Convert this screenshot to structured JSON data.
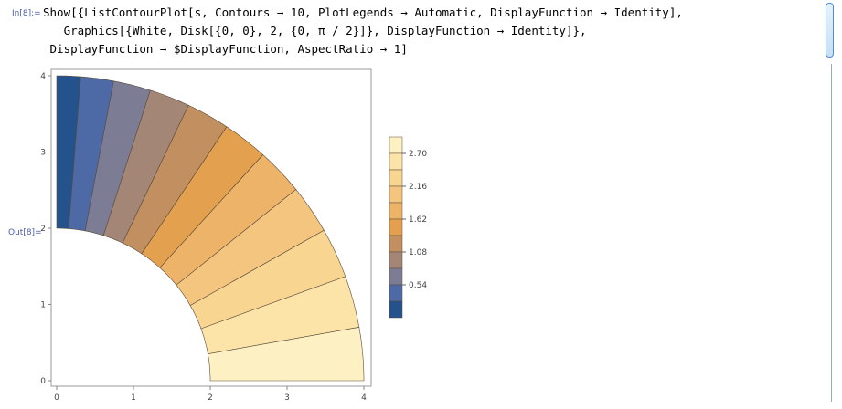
{
  "input": {
    "label": "In[8]:=",
    "lines": [
      "Show[{ListContourPlot[s, Contours → 10, PlotLegends → Automatic, DisplayFunction → Identity],",
      "   Graphics[{White, Disk[{0, 0}, 2, {0, π / 2}]}, DisplayFunction → Identity]},",
      " DisplayFunction → $DisplayFunction, AspectRatio → 1]"
    ]
  },
  "output": {
    "label": "Out[8]="
  },
  "chart_data": {
    "type": "contour",
    "x_ticks": [
      "0",
      "1",
      "2",
      "3",
      "4"
    ],
    "y_ticks": [
      "0",
      "1",
      "2",
      "3",
      "4"
    ],
    "xlim": [
      0,
      4
    ],
    "ylim": [
      0,
      4
    ],
    "legend_ticks": [
      "2.70",
      "2.16",
      "1.62",
      "1.08",
      "0.54"
    ],
    "legend_placement": "right",
    "colors": [
      "#23528c",
      "#4d6aa6",
      "#7c7c94",
      "#a38676",
      "#c29060",
      "#e3a04f",
      "#edb469",
      "#f3c57f",
      "#f8d591",
      "#fce4a8",
      "#fdf1c4"
    ]
  }
}
